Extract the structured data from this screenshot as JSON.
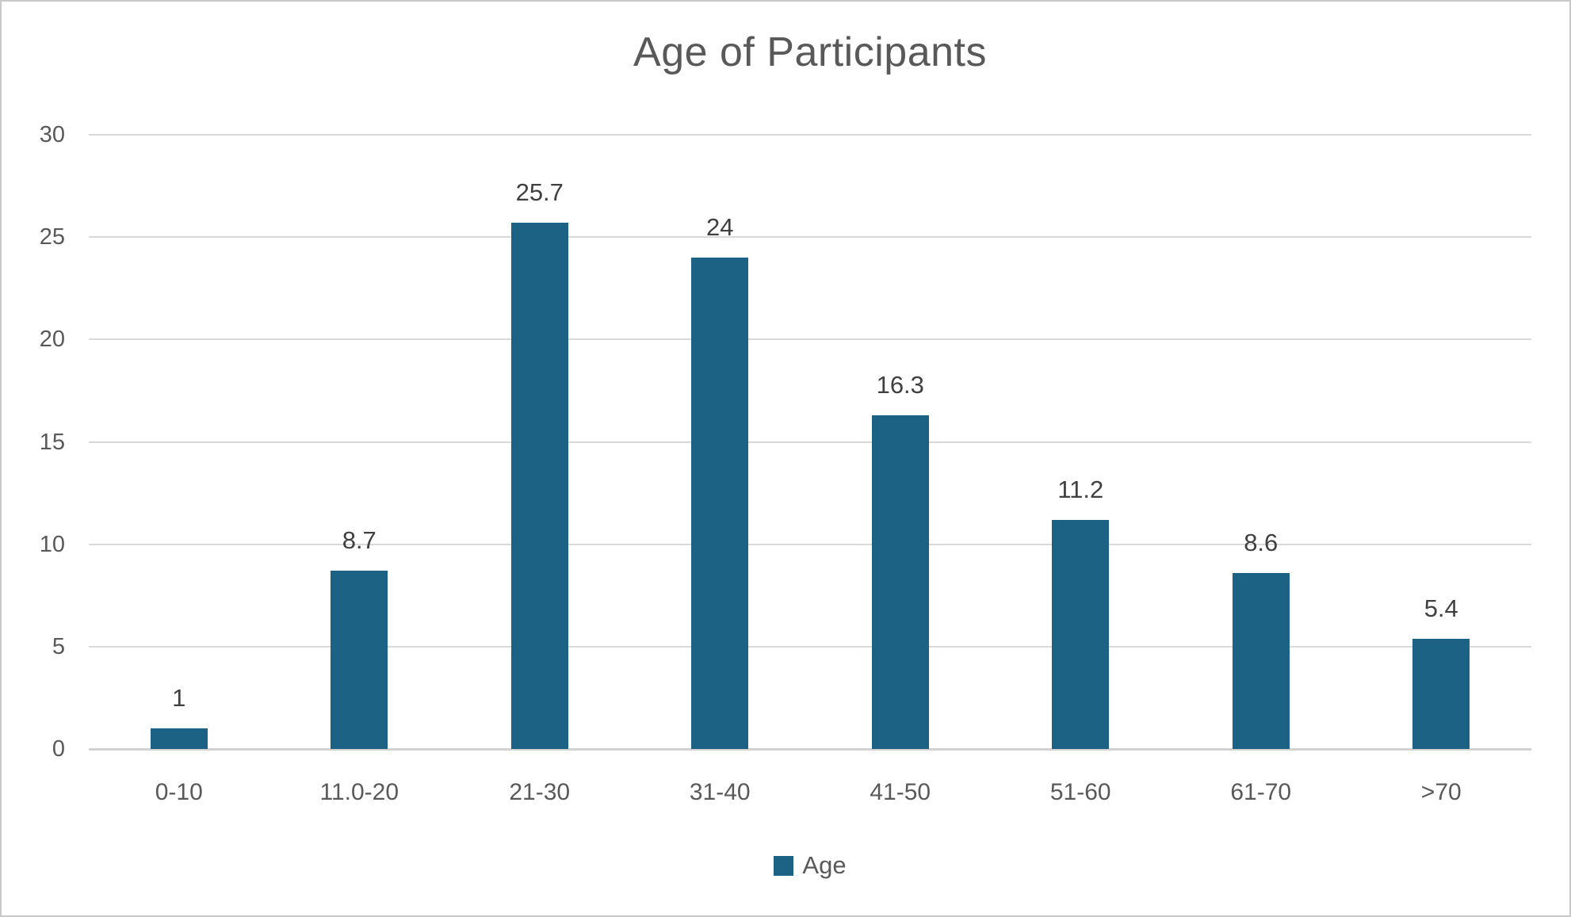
{
  "title": "Age of Participants",
  "accent_color": "#1c6285",
  "chart_data": {
    "type": "bar",
    "title": "Age of Participants",
    "categories": [
      "0-10",
      "11.0-20",
      "21-30",
      "31-40",
      "41-50",
      "51-60",
      "61-70",
      ">70"
    ],
    "values": [
      1,
      8.7,
      25.7,
      24,
      16.3,
      11.2,
      8.6,
      5.4
    ],
    "value_labels": [
      "1",
      "8.7",
      "25.7",
      "24",
      "16.3",
      "11.2",
      "8.6",
      "5.4"
    ],
    "series_name": "Age",
    "xlabel": "",
    "ylabel": "",
    "ylim": [
      0,
      30
    ],
    "yticks": [
      0,
      5,
      10,
      15,
      20,
      25,
      30
    ],
    "grid": true,
    "legend": {
      "position": "bottom",
      "entries": [
        "Age"
      ]
    },
    "bar_color": "#1c6285"
  },
  "legend": {
    "label": "Age"
  }
}
